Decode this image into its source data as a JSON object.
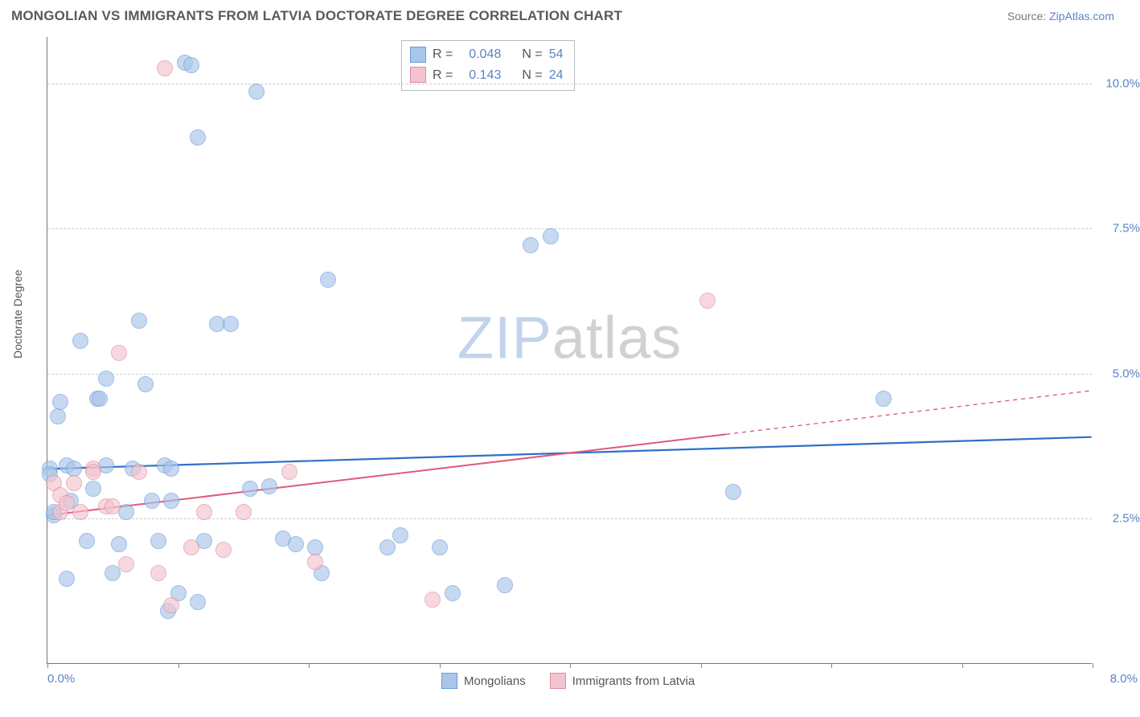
{
  "title": "MONGOLIAN VS IMMIGRANTS FROM LATVIA DOCTORATE DEGREE CORRELATION CHART",
  "source_label": "Source:",
  "source_name": "ZipAtlas.com",
  "ylabel": "Doctorate Degree",
  "watermark": {
    "part1": "ZIP",
    "part2": "atlas"
  },
  "chart": {
    "type": "scatter",
    "background_color": "#ffffff",
    "grid_color": "#cccccc",
    "axis_color": "#777777",
    "xlim": [
      0,
      8.0
    ],
    "ylim": [
      0,
      10.8
    ],
    "xticks": [
      0.0,
      1.0,
      2.0,
      3.0,
      4.0,
      5.0,
      6.0,
      7.0,
      8.0
    ],
    "xtick_labels_shown": {
      "0.0": "0.0%",
      "8.0": "8.0%"
    },
    "yticks": [
      2.5,
      5.0,
      7.5,
      10.0
    ],
    "ytick_labels": [
      "2.5%",
      "5.0%",
      "7.5%",
      "10.0%"
    ],
    "marker_radius": 10,
    "marker_border_width": 1.2,
    "series": [
      {
        "name": "Mongolians",
        "fill_color": "#a9c6ea",
        "border_color": "#6a9bd8",
        "fill_opacity": 0.65,
        "r_value": "0.048",
        "n_value": "54",
        "trend": {
          "x1": 0,
          "y1": 3.35,
          "x2": 8.0,
          "y2": 3.9,
          "solid_until_x": 8.0,
          "color": "#2f6fc9",
          "width": 2.2
        },
        "points": [
          [
            0.02,
            3.35
          ],
          [
            0.02,
            3.25
          ],
          [
            0.05,
            2.55
          ],
          [
            0.05,
            2.6
          ],
          [
            0.08,
            4.25
          ],
          [
            0.1,
            4.5
          ],
          [
            0.15,
            1.45
          ],
          [
            0.15,
            3.4
          ],
          [
            0.18,
            2.8
          ],
          [
            0.2,
            3.35
          ],
          [
            0.25,
            5.55
          ],
          [
            0.3,
            2.1
          ],
          [
            0.35,
            3.0
          ],
          [
            0.38,
            4.55
          ],
          [
            0.4,
            4.55
          ],
          [
            0.45,
            3.4
          ],
          [
            0.45,
            4.9
          ],
          [
            0.5,
            1.55
          ],
          [
            0.55,
            2.05
          ],
          [
            0.6,
            2.6
          ],
          [
            0.65,
            3.35
          ],
          [
            0.7,
            5.9
          ],
          [
            0.75,
            4.8
          ],
          [
            0.8,
            2.8
          ],
          [
            0.85,
            2.1
          ],
          [
            0.9,
            3.4
          ],
          [
            0.92,
            0.9
          ],
          [
            0.95,
            3.35
          ],
          [
            0.95,
            2.8
          ],
          [
            1.0,
            1.2
          ],
          [
            1.05,
            10.35
          ],
          [
            1.1,
            10.3
          ],
          [
            1.15,
            1.05
          ],
          [
            1.15,
            9.05
          ],
          [
            1.2,
            2.1
          ],
          [
            1.3,
            5.85
          ],
          [
            1.4,
            5.85
          ],
          [
            1.55,
            3.0
          ],
          [
            1.6,
            9.85
          ],
          [
            1.7,
            3.05
          ],
          [
            1.8,
            2.15
          ],
          [
            1.9,
            2.05
          ],
          [
            2.05,
            2.0
          ],
          [
            2.1,
            1.55
          ],
          [
            2.15,
            6.6
          ],
          [
            2.6,
            2.0
          ],
          [
            2.7,
            2.2
          ],
          [
            3.0,
            2.0
          ],
          [
            3.1,
            1.2
          ],
          [
            3.5,
            1.35
          ],
          [
            3.7,
            7.2
          ],
          [
            3.85,
            7.35
          ],
          [
            5.25,
            2.95
          ],
          [
            6.4,
            4.55
          ]
        ]
      },
      {
        "name": "Immigrants from Latvia",
        "fill_color": "#f3c4cf",
        "border_color": "#e08aa0",
        "fill_opacity": 0.65,
        "r_value": "0.143",
        "n_value": "24",
        "trend": {
          "x1": 0,
          "y1": 2.55,
          "x2": 8.0,
          "y2": 4.7,
          "solid_until_x": 5.2,
          "color": "#e05a7d",
          "width": 2
        },
        "points": [
          [
            0.05,
            3.1
          ],
          [
            0.1,
            2.9
          ],
          [
            0.1,
            2.6
          ],
          [
            0.15,
            2.75
          ],
          [
            0.2,
            3.1
          ],
          [
            0.25,
            2.6
          ],
          [
            0.35,
            3.35
          ],
          [
            0.35,
            3.3
          ],
          [
            0.45,
            2.7
          ],
          [
            0.5,
            2.7
          ],
          [
            0.55,
            5.35
          ],
          [
            0.6,
            1.7
          ],
          [
            0.7,
            3.3
          ],
          [
            0.85,
            1.55
          ],
          [
            0.9,
            10.25
          ],
          [
            0.95,
            1.0
          ],
          [
            1.1,
            2.0
          ],
          [
            1.2,
            2.6
          ],
          [
            1.35,
            1.95
          ],
          [
            1.5,
            2.6
          ],
          [
            1.85,
            3.3
          ],
          [
            2.05,
            1.75
          ],
          [
            2.95,
            1.1
          ],
          [
            5.05,
            6.25
          ]
        ]
      }
    ],
    "stats_box": {
      "r_label": "R =",
      "n_label": "N ="
    },
    "bottom_legend": [
      "Mongolians",
      "Immigrants from Latvia"
    ]
  }
}
